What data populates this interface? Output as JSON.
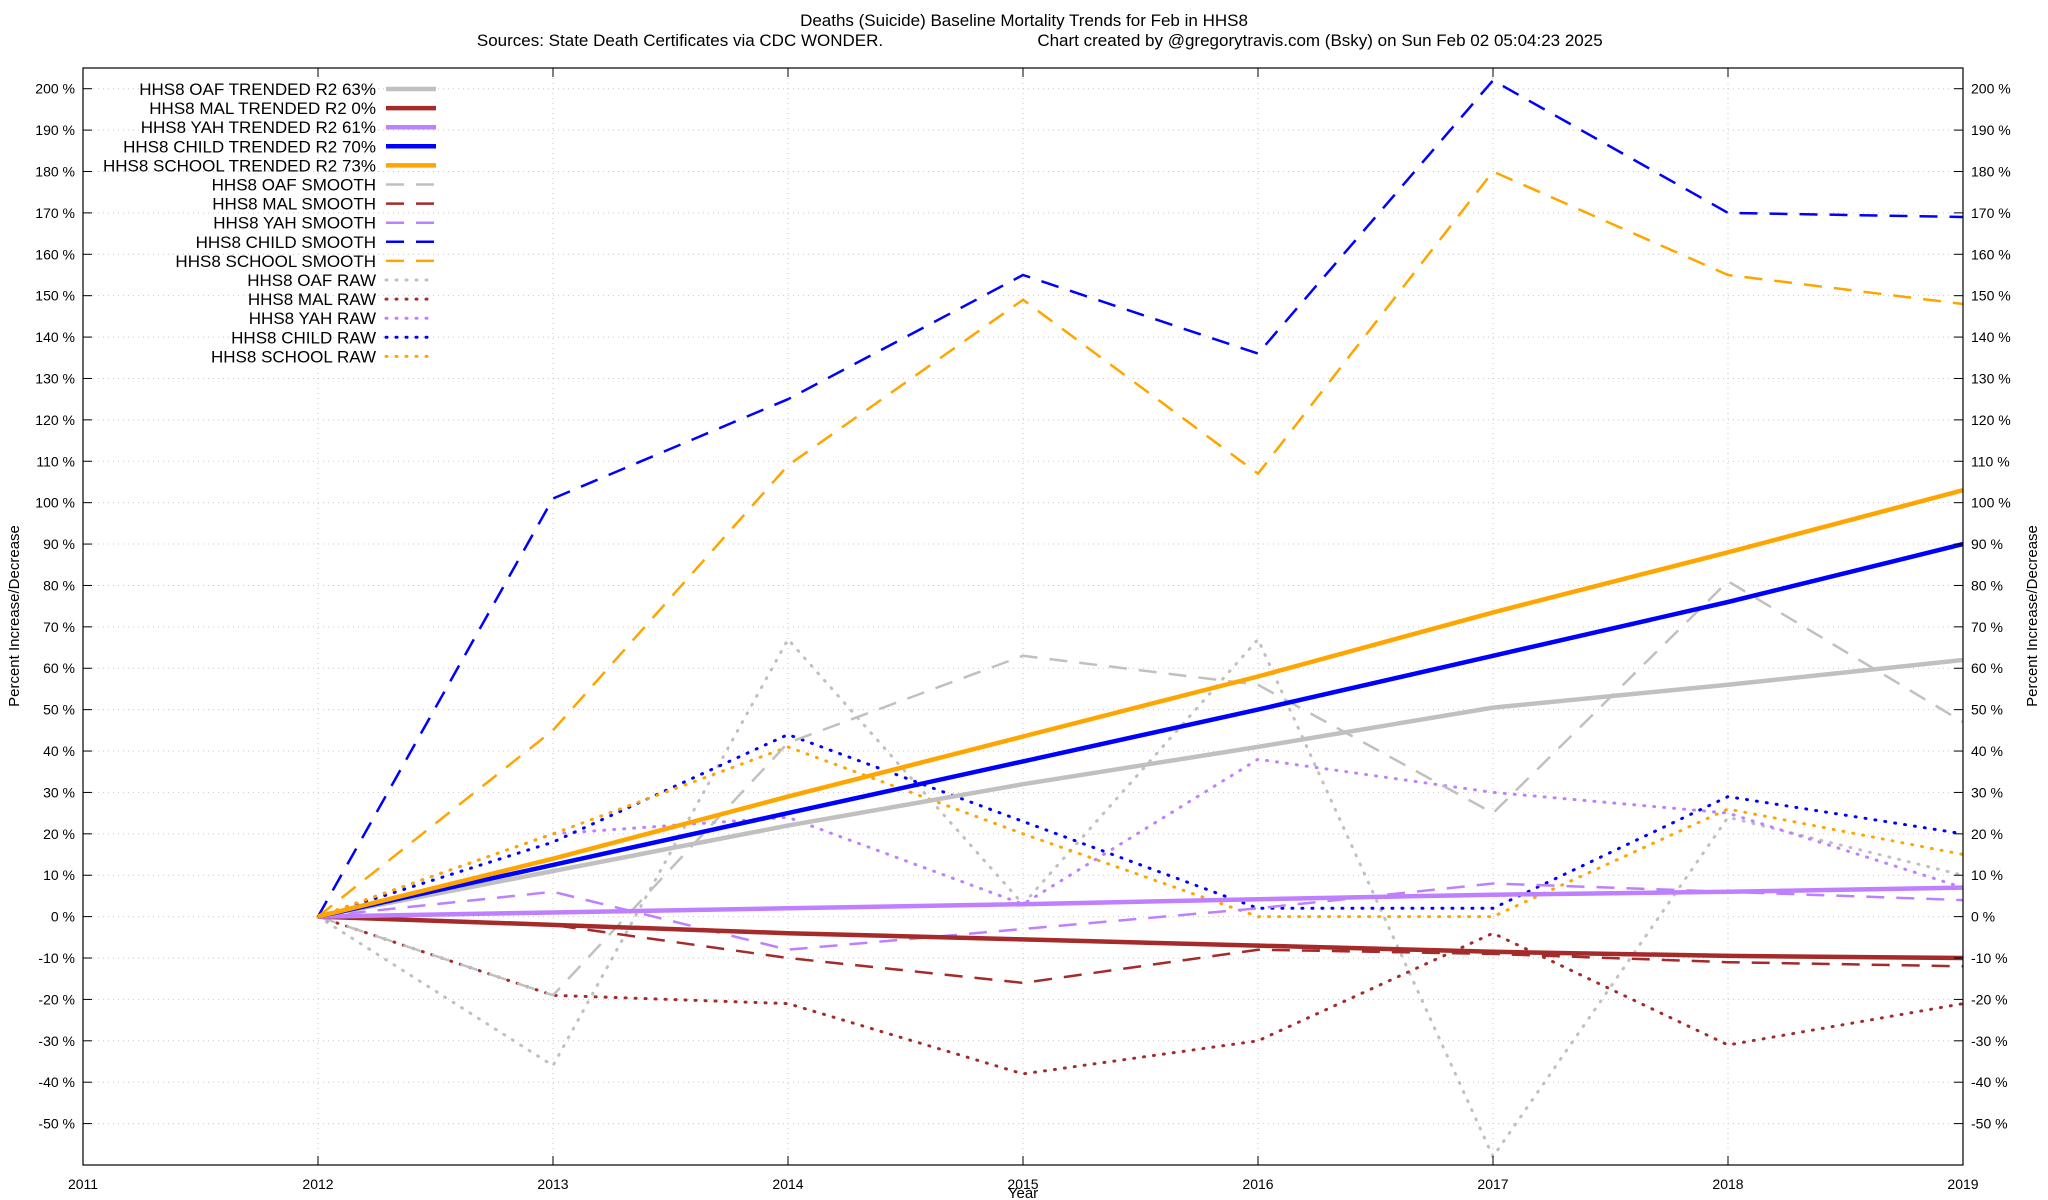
{
  "chart_data": {
    "type": "line",
    "title": "Deaths (Suicide)  Baseline Mortality Trends for Feb in HHS8",
    "subtitle_left": "Sources: State Death Certificates via CDC WONDER.",
    "subtitle_right": "Chart created by @gregorytravis.com (Bsky) on Sun Feb 02 05:04:23 2025",
    "xlabel": "Year",
    "ylabel": "Percent Increase/Decrease",
    "y2label": "Percent Increase/Decrease",
    "xlim": [
      2011,
      2019
    ],
    "ylim": [
      -60,
      205
    ],
    "x_ticks": [
      2011,
      2012,
      2013,
      2014,
      2015,
      2016,
      2017,
      2018,
      2019
    ],
    "x_tick_labels": [
      "2011",
      "2012",
      "2013",
      "2014",
      "2015",
      "2016",
      "2017",
      "2018",
      "2019"
    ],
    "y_ticks": [
      -50,
      -40,
      -30,
      -20,
      -10,
      0,
      10,
      20,
      30,
      40,
      50,
      60,
      70,
      80,
      90,
      100,
      110,
      120,
      130,
      140,
      150,
      160,
      170,
      180,
      190,
      200
    ],
    "y_tick_labels": [
      "-50 %",
      "-40 %",
      "-30 %",
      "-20 %",
      "-10 %",
      "0 %",
      "10 %",
      "20 %",
      "30 %",
      "40 %",
      "50 %",
      "60 %",
      "70 %",
      "80 %",
      "90 %",
      "100 %",
      "110 %",
      "120 %",
      "130 %",
      "140 %",
      "150 %",
      "160 %",
      "170 %",
      "180 %",
      "190 %",
      "200 %"
    ],
    "grid": true,
    "legend_position": "top-left",
    "x": [
      2012,
      2013,
      2014,
      2015,
      2016,
      2017,
      2018,
      2019
    ],
    "series": [
      {
        "name": "HHS8 OAF TRENDED R2  63%",
        "style": "trend",
        "color": "#c0c0c0",
        "values": [
          0,
          11,
          22,
          32,
          41,
          50.5,
          56,
          62
        ]
      },
      {
        "name": "HHS8 MAL TRENDED R2   0%",
        "style": "trend",
        "color": "#a52a2a",
        "values": [
          0,
          -2,
          -4,
          -5.5,
          -7,
          -8.5,
          -9.5,
          -10
        ]
      },
      {
        "name": "HHS8 YAH TRENDED R2  61%",
        "style": "trend",
        "color": "#bf80ff",
        "values": [
          0,
          1,
          2,
          3,
          4.2,
          5.3,
          6,
          7
        ]
      },
      {
        "name": "HHS8 CHILD TRENDED R2  70%",
        "style": "trend",
        "color": "#0000ff",
        "values": [
          0,
          12.5,
          25,
          37.5,
          50,
          63,
          76,
          90
        ]
      },
      {
        "name": "HHS8 SCHOOL TRENDED R2  73%",
        "style": "trend",
        "color": "#ffa500",
        "values": [
          0,
          14,
          29,
          43.5,
          58,
          73.5,
          88,
          103
        ]
      },
      {
        "name": "HHS8 OAF SMOOTH",
        "style": "smooth",
        "color": "#c0c0c0",
        "values": [
          0,
          -19,
          42,
          63,
          56,
          25,
          81,
          47
        ]
      },
      {
        "name": "HHS8 MAL SMOOTH",
        "style": "smooth",
        "color": "#a52a2a",
        "values": [
          0,
          -2,
          -10,
          -16,
          -8,
          -9,
          -11,
          -12
        ]
      },
      {
        "name": "HHS8 YAH SMOOTH",
        "style": "smooth",
        "color": "#bf80ff",
        "values": [
          0,
          6,
          -8,
          -3,
          2,
          8,
          6,
          4
        ]
      },
      {
        "name": "HHS8 CHILD SMOOTH",
        "style": "smooth",
        "color": "#0000ff",
        "values": [
          0,
          101,
          125,
          155,
          136,
          202,
          170,
          169
        ]
      },
      {
        "name": "HHS8 SCHOOL SMOOTH",
        "style": "smooth",
        "color": "#ffa500",
        "values": [
          0,
          45,
          109,
          149,
          107,
          180,
          155,
          148
        ]
      },
      {
        "name": "HHS8 OAF RAW",
        "style": "raw",
        "color": "#c0c0c0",
        "values": [
          0,
          -36,
          67,
          3,
          67,
          -58,
          24,
          10
        ]
      },
      {
        "name": "HHS8 MAL RAW",
        "style": "raw",
        "color": "#a52a2a",
        "values": [
          0,
          -19,
          -21,
          -38,
          -30,
          -4,
          -31,
          -21
        ]
      },
      {
        "name": "HHS8 YAH RAW",
        "style": "raw",
        "color": "#bf80ff",
        "values": [
          0,
          20,
          24,
          3,
          38,
          30,
          25,
          7
        ]
      },
      {
        "name": "HHS8 CHILD RAW",
        "style": "raw",
        "color": "#0000ff",
        "values": [
          0,
          18,
          44,
          23,
          2,
          2,
          29,
          20
        ]
      },
      {
        "name": "HHS8 SCHOOL RAW",
        "style": "raw",
        "color": "#ffa500",
        "values": [
          0,
          20,
          41,
          20,
          0,
          0,
          26,
          15
        ]
      }
    ]
  }
}
